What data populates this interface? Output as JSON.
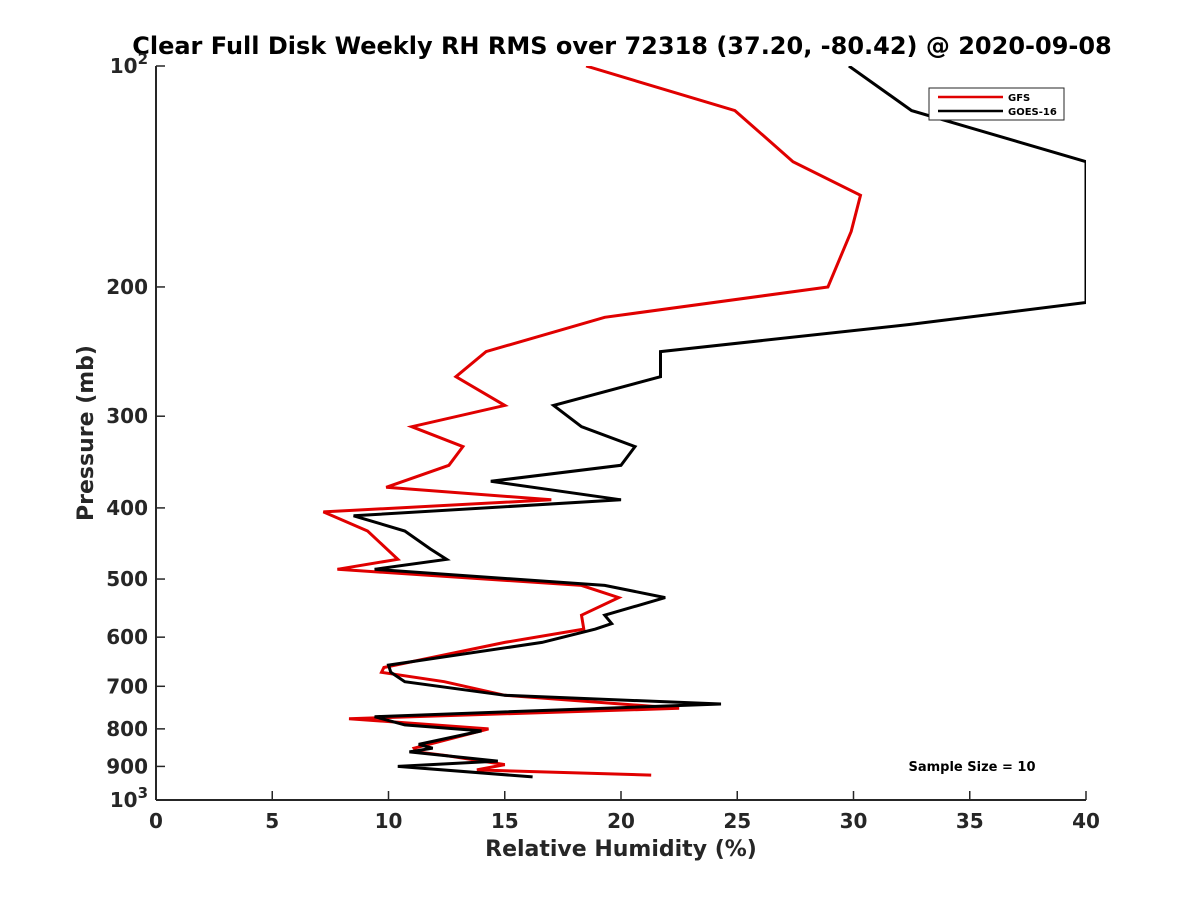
{
  "chart_data": {
    "type": "line",
    "title": "Clear Full Disk Weekly RH RMS over 72318 (37.20, -80.42) @ 2020-09-08",
    "xlabel": "Relative Humidity (%)",
    "ylabel": "Pressure (mb)",
    "xlim": [
      0,
      40
    ],
    "ylim": [
      100,
      1000
    ],
    "y_scale": "log",
    "y_reversed": true,
    "grid": false,
    "legend_position": "top-right",
    "x_ticks": [
      0,
      5,
      10,
      15,
      20,
      25,
      30,
      35,
      40
    ],
    "x_tick_labels": [
      "0",
      "5",
      "10",
      "15",
      "20",
      "25",
      "30",
      "35",
      "40"
    ],
    "y_ticks": [
      200,
      300,
      400,
      500,
      600,
      700,
      800,
      900
    ],
    "y_tick_labels": [
      "200",
      "300",
      "400",
      "500",
      "600",
      "700",
      "800",
      "900"
    ],
    "y_extreme_labels": [
      {
        "pressure": 100,
        "base": "10",
        "exp": "2"
      },
      {
        "pressure": 1000,
        "base": "10",
        "exp": "3"
      }
    ],
    "annotation": "Sample Size = 10",
    "series": [
      {
        "name": "GFS",
        "color": "#e00000",
        "points": [
          [
            18.5,
            100
          ],
          [
            24.9,
            115
          ],
          [
            27.4,
            135
          ],
          [
            30.3,
            150
          ],
          [
            29.9,
            168
          ],
          [
            28.9,
            200
          ],
          [
            19.3,
            220
          ],
          [
            14.2,
            245
          ],
          [
            12.9,
            265
          ],
          [
            15.0,
            290
          ],
          [
            11.0,
            310
          ],
          [
            13.2,
            330
          ],
          [
            12.6,
            350
          ],
          [
            9.9,
            375
          ],
          [
            17.0,
            390
          ],
          [
            7.2,
            405
          ],
          [
            9.1,
            430
          ],
          [
            10.4,
            470
          ],
          [
            7.8,
            485
          ],
          [
            18.3,
            510
          ],
          [
            19.9,
            530
          ],
          [
            18.3,
            560
          ],
          [
            18.4,
            585
          ],
          [
            15.0,
            610
          ],
          [
            9.8,
            660
          ],
          [
            9.7,
            670
          ],
          [
            12.4,
            690
          ],
          [
            15.0,
            720
          ],
          [
            22.5,
            750
          ],
          [
            8.3,
            775
          ],
          [
            14.3,
            800
          ],
          [
            11.1,
            850
          ],
          [
            11.2,
            860
          ],
          [
            12.5,
            870
          ],
          [
            15.0,
            895
          ],
          [
            13.8,
            910
          ],
          [
            21.3,
            925
          ]
        ]
      },
      {
        "name": "GOES-16",
        "color": "#000000",
        "points": [
          [
            29.8,
            100
          ],
          [
            32.5,
            115
          ],
          [
            40.0,
            135
          ],
          [
            40.0,
            210
          ],
          [
            32.4,
            225
          ],
          [
            21.7,
            245
          ],
          [
            21.7,
            265
          ],
          [
            17.1,
            290
          ],
          [
            18.3,
            310
          ],
          [
            20.6,
            330
          ],
          [
            20.0,
            350
          ],
          [
            14.4,
            368
          ],
          [
            20.0,
            390
          ],
          [
            8.5,
            410
          ],
          [
            10.7,
            430
          ],
          [
            11.8,
            455
          ],
          [
            12.5,
            470
          ],
          [
            9.4,
            485
          ],
          [
            19.3,
            510
          ],
          [
            21.9,
            530
          ],
          [
            19.3,
            560
          ],
          [
            19.6,
            575
          ],
          [
            18.9,
            585
          ],
          [
            16.6,
            610
          ],
          [
            10.0,
            655
          ],
          [
            10.1,
            670
          ],
          [
            10.7,
            690
          ],
          [
            15.0,
            720
          ],
          [
            24.3,
            740
          ],
          [
            9.4,
            770
          ],
          [
            10.7,
            790
          ],
          [
            14.0,
            805
          ],
          [
            11.3,
            840
          ],
          [
            11.9,
            850
          ],
          [
            10.9,
            860
          ],
          [
            14.7,
            885
          ],
          [
            10.4,
            900
          ],
          [
            16.2,
            930
          ]
        ]
      }
    ]
  }
}
